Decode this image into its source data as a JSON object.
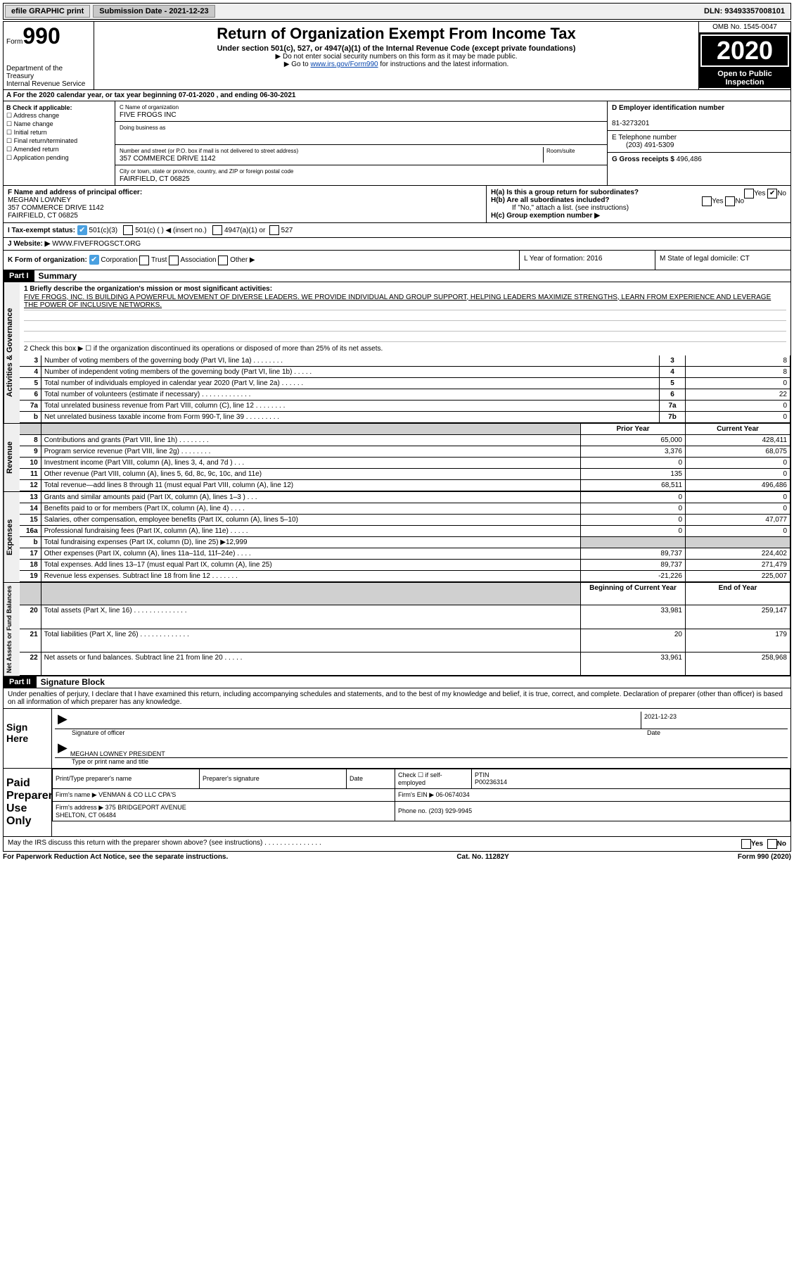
{
  "topbar": {
    "efile": "efile GRAPHIC print",
    "sub_label": "Submission Date - 2021-12-23",
    "dln": "DLN: 93493357008101"
  },
  "header": {
    "form_prefix": "Form",
    "form_num": "990",
    "dept": "Department of the Treasury\nInternal Revenue Service",
    "title": "Return of Organization Exempt From Income Tax",
    "sub": "Under section 501(c), 527, or 4947(a)(1) of the Internal Revenue Code (except private foundations)",
    "instr1": "▶ Do not enter social security numbers on this form as it may be made public.",
    "instr2_pre": "▶ Go to ",
    "instr2_link": "www.irs.gov/Form990",
    "instr2_post": " for instructions and the latest information.",
    "omb": "OMB No. 1545-0047",
    "year": "2020",
    "open": "Open to Public\nInspection"
  },
  "line_a": "A For the 2020 calendar year, or tax year beginning 07-01-2020    , and ending 06-30-2021",
  "blockB": {
    "title": "B Check if applicable:",
    "opts": [
      "Address change",
      "Name change",
      "Initial return",
      "Final return/terminated",
      "Amended return",
      "Application pending"
    ]
  },
  "blockC": {
    "name_lbl": "C Name of organization",
    "name": "FIVE FROGS INC",
    "dba_lbl": "Doing business as",
    "dba": "",
    "addr_lbl": "Number and street (or P.O. box if mail is not delivered to street address)",
    "room_lbl": "Room/suite",
    "addr": "357 COMMERCE DRIVE 1142",
    "city_lbl": "City or town, state or province, country, and ZIP or foreign postal code",
    "city": "FAIRFIELD, CT  06825"
  },
  "blockD": {
    "ein_lbl": "D Employer identification number",
    "ein": "81-3273201",
    "phone_lbl": "E Telephone number",
    "phone": "(203) 491-5309",
    "gross_lbl": "G Gross receipts $ ",
    "gross": "496,486"
  },
  "blockF": {
    "lbl": "F Name and address of principal officer:",
    "name": "MEGHAN LOWNEY\n357 COMMERCE DRIVE 1142\nFAIRFIELD, CT  06825"
  },
  "blockH": {
    "ha": "H(a)  Is this a group return for subordinates?",
    "ha_no": "No",
    "hb": "H(b)  Are all subordinates included?",
    "hb_note": "If \"No,\" attach a list. (see instructions)",
    "hc": "H(c)  Group exemption number ▶"
  },
  "rowI": {
    "lbl": "I    Tax-exempt status:",
    "opts": [
      "501(c)(3)",
      "501(c) (  ) ◀ (insert no.)",
      "4947(a)(1) or",
      "527"
    ]
  },
  "rowJ": {
    "lbl": "J   Website: ▶",
    "val": "WWW.FIVEFROGSCT.ORG"
  },
  "rowK": {
    "lbl": "K Form of organization:",
    "opts": [
      "Corporation",
      "Trust",
      "Association",
      "Other ▶"
    ],
    "L": "L Year of formation: 2016",
    "M": "M State of legal domicile: CT"
  },
  "part1": {
    "hdr": "Part I",
    "title": "Summary",
    "mission_lbl": "1   Briefly describe the organization's mission or most significant activities:",
    "mission": "FIVE FROGS, INC. IS BUILDING A POWERFUL MOVEMENT OF DIVERSE LEADERS. WE PROVIDE INDIVIDUAL AND GROUP SUPPORT, HELPING LEADERS MAXIMIZE STRENGTHS, LEARN FROM EXPERIENCE AND LEVERAGE THE POWER OF INCLUSIVE NETWORKS.",
    "line2": "2   Check this box ▶ ☐  if the organization discontinued its operations or disposed of more than 25% of its net assets.",
    "gov_rows": [
      {
        "n": "3",
        "t": "Number of voting members of the governing body (Part VI, line 1a)   .    .    .    .    .    .    .    .",
        "b": "3",
        "v": "8"
      },
      {
        "n": "4",
        "t": "Number of independent voting members of the governing body (Part VI, line 1b)   .    .    .    .    .",
        "b": "4",
        "v": "8"
      },
      {
        "n": "5",
        "t": "Total number of individuals employed in calendar year 2020 (Part V, line 2a)   .    .    .    .    .    .",
        "b": "5",
        "v": "0"
      },
      {
        "n": "6",
        "t": "Total number of volunteers (estimate if necessary)   .    .    .    .    .    .    .    .    .    .    .    .    .",
        "b": "6",
        "v": "22"
      },
      {
        "n": "7a",
        "t": "Total unrelated business revenue from Part VIII, column (C), line 12   .    .    .    .    .    .    .    .",
        "b": "7a",
        "v": "0"
      },
      {
        "n": "b",
        "t": "Net unrelated business taxable income from Form 990-T, line 39   .    .    .    .    .    .    .    .    .",
        "b": "7b",
        "v": "0"
      }
    ],
    "col_hdr_prior": "Prior Year",
    "col_hdr_curr": "Current Year",
    "rev_rows": [
      {
        "n": "8",
        "t": "Contributions and grants (Part VIII, line 1h)   .    .    .    .    .    .    .    .",
        "p": "65,000",
        "c": "428,411"
      },
      {
        "n": "9",
        "t": "Program service revenue (Part VIII, line 2g)   .    .    .    .    .    .    .    .",
        "p": "3,376",
        "c": "68,075"
      },
      {
        "n": "10",
        "t": "Investment income (Part VIII, column (A), lines 3, 4, and 7d )   .    .    .",
        "p": "0",
        "c": "0"
      },
      {
        "n": "11",
        "t": "Other revenue (Part VIII, column (A), lines 5, 6d, 8c, 9c, 10c, and 11e)",
        "p": "135",
        "c": "0"
      },
      {
        "n": "12",
        "t": "Total revenue—add lines 8 through 11 (must equal Part VIII, column (A), line 12)",
        "p": "68,511",
        "c": "496,486"
      }
    ],
    "exp_rows": [
      {
        "n": "13",
        "t": "Grants and similar amounts paid (Part IX, column (A), lines 1–3 )   .    .    .",
        "p": "0",
        "c": "0"
      },
      {
        "n": "14",
        "t": "Benefits paid to or for members (Part IX, column (A), line 4)   .    .    .    .",
        "p": "0",
        "c": "0"
      },
      {
        "n": "15",
        "t": "Salaries, other compensation, employee benefits (Part IX, column (A), lines 5–10)",
        "p": "0",
        "c": "47,077"
      },
      {
        "n": "16a",
        "t": "Professional fundraising fees (Part IX, column (A), line 11e)   .    .    .    .    .",
        "p": "0",
        "c": "0"
      },
      {
        "n": "b",
        "t": "Total fundraising expenses (Part IX, column (D), line 25) ▶12,999",
        "p": "",
        "c": "",
        "shade": true
      },
      {
        "n": "17",
        "t": "Other expenses (Part IX, column (A), lines 11a–11d, 11f–24e)   .    .    .    .",
        "p": "89,737",
        "c": "224,402"
      },
      {
        "n": "18",
        "t": "Total expenses. Add lines 13–17 (must equal Part IX, column (A), line 25)",
        "p": "89,737",
        "c": "271,479"
      },
      {
        "n": "19",
        "t": "Revenue less expenses. Subtract line 18 from line 12   .    .    .    .    .    .    .",
        "p": "-21,226",
        "c": "225,007"
      }
    ],
    "net_hdr_beg": "Beginning of Current Year",
    "net_hdr_end": "End of Year",
    "net_rows": [
      {
        "n": "20",
        "t": "Total assets (Part X, line 16)   .    .    .    .    .    .    .    .    .    .    .    .    .    .",
        "p": "33,981",
        "c": "259,147"
      },
      {
        "n": "21",
        "t": "Total liabilities (Part X, line 26)   .    .    .    .    .    .    .    .    .    .    .    .    .",
        "p": "20",
        "c": "179"
      },
      {
        "n": "22",
        "t": "Net assets or fund balances. Subtract line 21 from line 20   .    .    .    .    .",
        "p": "33,961",
        "c": "258,968"
      }
    ]
  },
  "part2": {
    "hdr": "Part II",
    "title": "Signature Block",
    "decl": "Under penalties of perjury, I declare that I have examined this return, including accompanying schedules and statements, and to the best of my knowledge and belief, it is true, correct, and complete. Declaration of preparer (other than officer) is based on all information of which preparer has any knowledge.",
    "sign_here": "Sign Here",
    "sig_officer": "Signature of officer",
    "sig_date": "2021-12-23",
    "sig_date_lbl": "Date",
    "printed": "MEGHAN LOWNEY PRESIDENT",
    "printed_lbl": "Type or print name and title",
    "paid": "Paid Preparer Use Only",
    "prep_name_lbl": "Print/Type preparer's name",
    "prep_sig_lbl": "Preparer's signature",
    "prep_date_lbl": "Date",
    "prep_self": "Check ☐ if self-employed",
    "ptin_lbl": "PTIN",
    "ptin": "P00236314",
    "firm_name_lbl": "Firm's name    ▶",
    "firm_name": "VENMAN & CO LLC CPA'S",
    "firm_ein_lbl": "Firm's EIN ▶",
    "firm_ein": "06-0674034",
    "firm_addr_lbl": "Firm's address ▶",
    "firm_addr": "375 BRIDGEPORT AVENUE\nSHELTON, CT  06484",
    "firm_phone_lbl": "Phone no.",
    "firm_phone": "(203) 929-9945",
    "may_irs": "May the IRS discuss this return with the preparer shown above? (see instructions)   .    .    .    .    .    .    .    .    .    .    .    .    .    .    .",
    "yes": "Yes",
    "no": "No"
  },
  "footer": {
    "left": "For Paperwork Reduction Act Notice, see the separate instructions.",
    "mid": "Cat. No. 11282Y",
    "right": "Form 990 (2020)"
  }
}
